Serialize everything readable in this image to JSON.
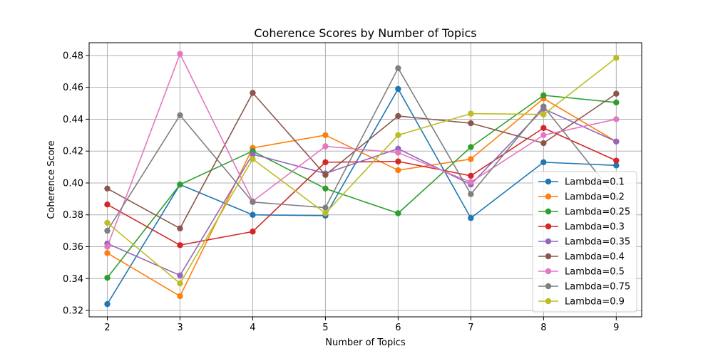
{
  "chart_data": {
    "type": "line",
    "title": "Coherence Scores by Number of Topics",
    "xlabel": "Number of Topics",
    "ylabel": "Coherence Score",
    "x": [
      2,
      3,
      4,
      5,
      6,
      7,
      8,
      9
    ],
    "xlim": [
      1.75,
      9.35
    ],
    "ylim": [
      0.316,
      0.488
    ],
    "yticks": [
      0.32,
      0.34,
      0.36,
      0.38,
      0.4,
      0.42,
      0.44,
      0.46,
      0.48
    ],
    "ytick_labels": [
      "0.32",
      "0.34",
      "0.36",
      "0.38",
      "0.40",
      "0.42",
      "0.44",
      "0.46",
      "0.48"
    ],
    "xtick_labels": [
      "2",
      "3",
      "4",
      "5",
      "6",
      "7",
      "8",
      "9"
    ],
    "grid": true,
    "legend_position": "lower-right",
    "series": [
      {
        "name": "Lambda=0.1",
        "color": "#1f77b4",
        "values": [
          0.324,
          0.399,
          0.38,
          0.3795,
          0.459,
          0.378,
          0.413,
          0.411
        ]
      },
      {
        "name": "Lambda=0.2",
        "color": "#ff7f0e",
        "values": [
          0.356,
          0.329,
          0.422,
          0.43,
          0.408,
          0.415,
          0.453,
          0.426
        ]
      },
      {
        "name": "Lambda=0.25",
        "color": "#2ca02c",
        "values": [
          0.3405,
          0.399,
          0.42,
          0.3965,
          0.381,
          0.4225,
          0.455,
          0.4505
        ]
      },
      {
        "name": "Lambda=0.3",
        "color": "#d62728",
        "values": [
          0.3865,
          0.361,
          0.3695,
          0.413,
          0.4135,
          0.4045,
          0.4345,
          0.414
        ]
      },
      {
        "name": "Lambda=0.35",
        "color": "#9467bd",
        "values": [
          0.362,
          0.342,
          0.418,
          0.406,
          0.4215,
          0.399,
          0.4465,
          0.426
        ]
      },
      {
        "name": "Lambda=0.4",
        "color": "#8c564b",
        "values": [
          0.3965,
          0.3715,
          0.4565,
          0.405,
          0.442,
          0.4375,
          0.425,
          0.456
        ]
      },
      {
        "name": "Lambda=0.5",
        "color": "#e377c2",
        "values": [
          0.36,
          0.481,
          0.3885,
          0.423,
          0.419,
          0.4005,
          0.43,
          0.44
        ]
      },
      {
        "name": "Lambda=0.75",
        "color": "#7f7f7f",
        "values": [
          0.37,
          0.4425,
          0.388,
          0.3845,
          0.472,
          0.393,
          0.448,
          0.391
        ]
      },
      {
        "name": "Lambda=0.9",
        "color": "#bcbd22",
        "values": [
          0.375,
          0.337,
          0.415,
          0.381,
          0.43,
          0.4435,
          0.443,
          0.4785
        ]
      }
    ]
  }
}
